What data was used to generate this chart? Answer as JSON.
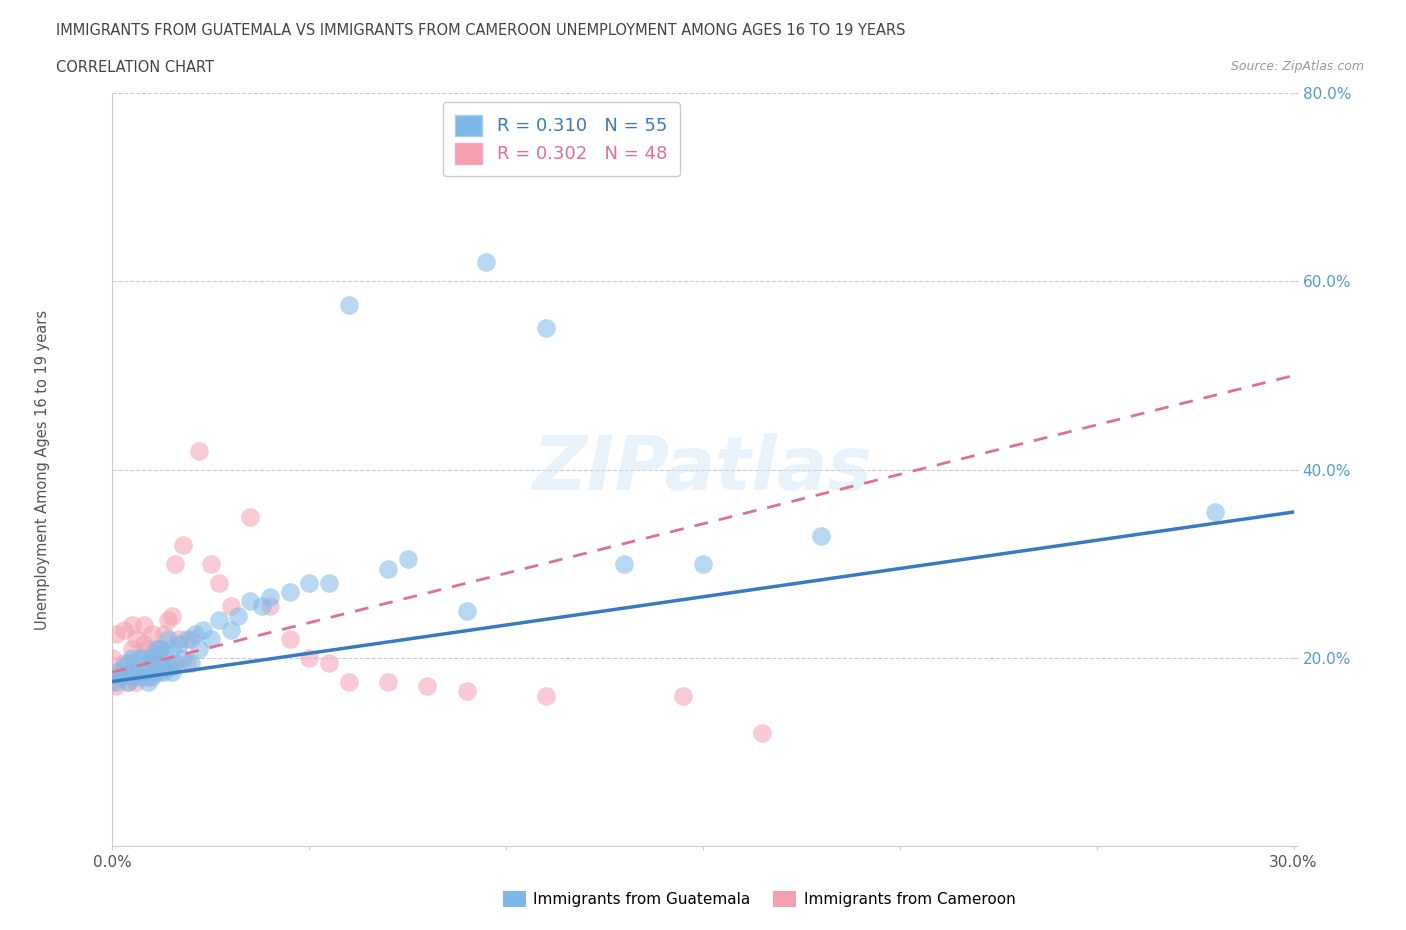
{
  "title_line1": "IMMIGRANTS FROM GUATEMALA VS IMMIGRANTS FROM CAMEROON UNEMPLOYMENT AMONG AGES 16 TO 19 YEARS",
  "title_line2": "CORRELATION CHART",
  "source": "Source: ZipAtlas.com",
  "ylabel": "Unemployment Among Ages 16 to 19 years",
  "xlim": [
    0.0,
    0.3
  ],
  "ylim": [
    0.0,
    0.8
  ],
  "color_guatemala": "#7eb8e8",
  "color_cameroon": "#f4a0b0",
  "line_color_guatemala": "#3a7abf",
  "line_color_cameroon": "#e07090",
  "watermark": "ZIPatlas",
  "legend_r1_val": "0.310",
  "legend_n1_val": "55",
  "legend_r2_val": "0.302",
  "legend_n2_val": "48",
  "guatemala_x": [
    0.001,
    0.001,
    0.002,
    0.003,
    0.004,
    0.004,
    0.005,
    0.005,
    0.006,
    0.007,
    0.007,
    0.008,
    0.008,
    0.009,
    0.009,
    0.01,
    0.01,
    0.011,
    0.011,
    0.012,
    0.012,
    0.013,
    0.013,
    0.014,
    0.014,
    0.015,
    0.015,
    0.016,
    0.017,
    0.018,
    0.019,
    0.02,
    0.021,
    0.022,
    0.023,
    0.025,
    0.027,
    0.03,
    0.032,
    0.035,
    0.038,
    0.04,
    0.045,
    0.05,
    0.055,
    0.06,
    0.07,
    0.075,
    0.09,
    0.095,
    0.11,
    0.13,
    0.15,
    0.18,
    0.28
  ],
  "guatemala_y": [
    0.175,
    0.185,
    0.18,
    0.19,
    0.175,
    0.195,
    0.18,
    0.2,
    0.185,
    0.18,
    0.2,
    0.185,
    0.2,
    0.175,
    0.195,
    0.18,
    0.2,
    0.185,
    0.21,
    0.19,
    0.21,
    0.185,
    0.205,
    0.19,
    0.22,
    0.185,
    0.21,
    0.195,
    0.215,
    0.2,
    0.22,
    0.195,
    0.225,
    0.21,
    0.23,
    0.22,
    0.24,
    0.23,
    0.245,
    0.26,
    0.255,
    0.265,
    0.27,
    0.28,
    0.28,
    0.575,
    0.295,
    0.305,
    0.25,
    0.62,
    0.55,
    0.3,
    0.3,
    0.33,
    0.355
  ],
  "cameroon_x": [
    0.0,
    0.0,
    0.001,
    0.001,
    0.002,
    0.003,
    0.003,
    0.004,
    0.005,
    0.005,
    0.005,
    0.006,
    0.006,
    0.007,
    0.008,
    0.008,
    0.009,
    0.009,
    0.01,
    0.01,
    0.011,
    0.012,
    0.012,
    0.013,
    0.014,
    0.015,
    0.015,
    0.016,
    0.017,
    0.018,
    0.019,
    0.02,
    0.022,
    0.025,
    0.027,
    0.03,
    0.035,
    0.04,
    0.045,
    0.05,
    0.055,
    0.06,
    0.07,
    0.08,
    0.09,
    0.11,
    0.145,
    0.165
  ],
  "cameroon_y": [
    0.175,
    0.2,
    0.17,
    0.225,
    0.185,
    0.195,
    0.23,
    0.175,
    0.185,
    0.21,
    0.235,
    0.175,
    0.22,
    0.185,
    0.215,
    0.235,
    0.18,
    0.21,
    0.195,
    0.225,
    0.205,
    0.185,
    0.21,
    0.225,
    0.24,
    0.19,
    0.245,
    0.3,
    0.22,
    0.32,
    0.195,
    0.22,
    0.42,
    0.3,
    0.28,
    0.255,
    0.35,
    0.255,
    0.22,
    0.2,
    0.195,
    0.175,
    0.175,
    0.17,
    0.165,
    0.16,
    0.16,
    0.12
  ]
}
